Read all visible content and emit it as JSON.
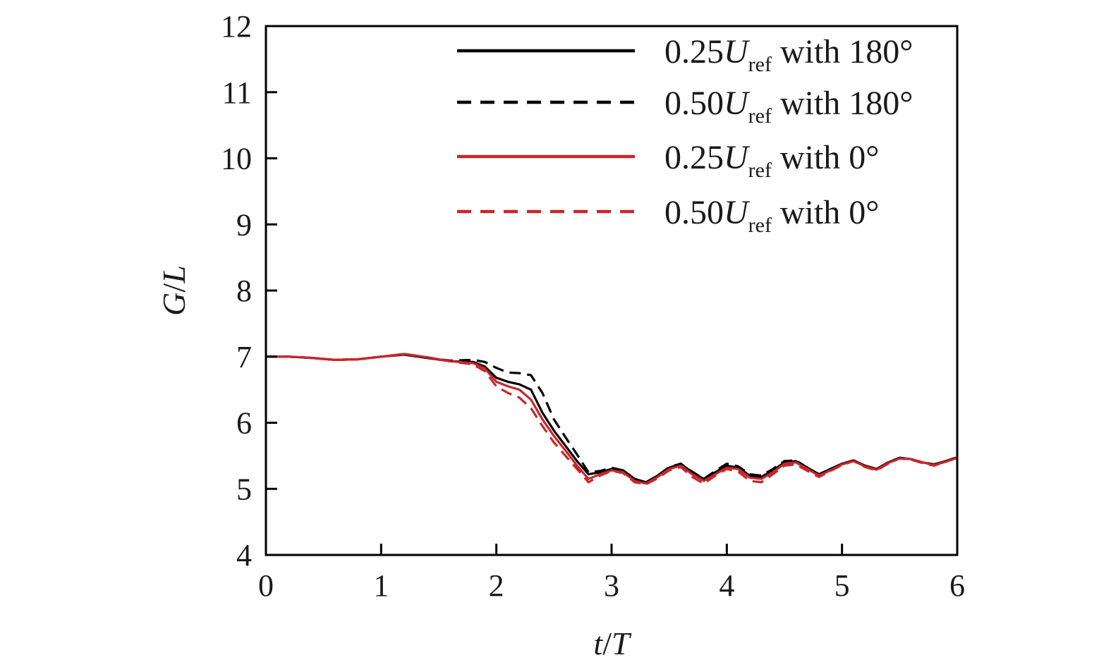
{
  "chart_data": {
    "type": "line",
    "xlabel": {
      "italic_a": "t",
      "sep": "/",
      "italic_b": "T"
    },
    "ylabel": {
      "italic_a": "G",
      "sep": "/",
      "italic_b": "L"
    },
    "xlim": [
      0,
      6
    ],
    "ylim": [
      4,
      12
    ],
    "xticks": [
      0,
      1,
      2,
      3,
      4,
      5,
      6
    ],
    "yticks": [
      4,
      5,
      6,
      7,
      8,
      9,
      10,
      11,
      12
    ],
    "grid": false,
    "legend_position": "top-right",
    "series": [
      {
        "name": "0.25Uref with 180°",
        "label": {
          "prefix": "0.25",
          "var": "U",
          "sub": "ref",
          "suffix": " with 180°"
        },
        "color": "#000000",
        "style": "solid",
        "x": [
          0,
          0.2,
          0.4,
          0.6,
          0.8,
          1.0,
          1.2,
          1.4,
          1.6,
          1.8,
          1.9,
          2.0,
          2.1,
          2.2,
          2.3,
          2.4,
          2.5,
          2.6,
          2.7,
          2.8,
          2.9,
          3.0,
          3.1,
          3.2,
          3.3,
          3.4,
          3.5,
          3.6,
          3.7,
          3.8,
          3.9,
          4.0,
          4.1,
          4.2,
          4.3,
          4.4,
          4.5,
          4.6,
          4.7,
          4.8,
          4.9,
          5.0,
          5.1,
          5.2,
          5.3,
          5.4,
          5.5,
          5.6,
          5.7,
          5.8,
          5.9,
          6.0
        ],
        "y": [
          7.0,
          7.0,
          6.98,
          6.95,
          6.96,
          7.0,
          7.03,
          6.98,
          6.93,
          6.92,
          6.85,
          6.68,
          6.62,
          6.58,
          6.5,
          6.15,
          5.88,
          5.65,
          5.42,
          5.22,
          5.25,
          5.3,
          5.28,
          5.15,
          5.1,
          5.2,
          5.32,
          5.38,
          5.25,
          5.15,
          5.25,
          5.35,
          5.32,
          5.2,
          5.18,
          5.28,
          5.4,
          5.42,
          5.32,
          5.22,
          5.3,
          5.38,
          5.43,
          5.35,
          5.3,
          5.4,
          5.47,
          5.45,
          5.4,
          5.37,
          5.42,
          5.47
        ]
      },
      {
        "name": "0.50Uref with 180°",
        "label": {
          "prefix": "0.50",
          "var": "U",
          "sub": "ref",
          "suffix": " with 180°"
        },
        "color": "#000000",
        "style": "dashed",
        "x": [
          0,
          0.2,
          0.4,
          0.6,
          0.8,
          1.0,
          1.2,
          1.4,
          1.6,
          1.8,
          1.9,
          2.0,
          2.1,
          2.2,
          2.3,
          2.4,
          2.5,
          2.6,
          2.7,
          2.8,
          2.9,
          3.0,
          3.1,
          3.2,
          3.3,
          3.4,
          3.5,
          3.6,
          3.7,
          3.8,
          3.9,
          4.0,
          4.1,
          4.2,
          4.3,
          4.4,
          4.5,
          4.6,
          4.7,
          4.8,
          4.9,
          5.0,
          5.1,
          5.2,
          5.3,
          5.4,
          5.5,
          5.6,
          5.7,
          5.8,
          5.9,
          6.0
        ],
        "y": [
          7.0,
          7.0,
          6.98,
          6.95,
          6.96,
          7.0,
          7.03,
          6.98,
          6.94,
          6.95,
          6.92,
          6.83,
          6.76,
          6.75,
          6.72,
          6.45,
          6.05,
          5.78,
          5.52,
          5.25,
          5.27,
          5.32,
          5.28,
          5.15,
          5.1,
          5.2,
          5.33,
          5.38,
          5.26,
          5.15,
          5.27,
          5.38,
          5.34,
          5.22,
          5.2,
          5.3,
          5.42,
          5.43,
          5.32,
          5.22,
          5.3,
          5.38,
          5.43,
          5.35,
          5.3,
          5.4,
          5.47,
          5.45,
          5.4,
          5.37,
          5.42,
          5.48
        ]
      },
      {
        "name": "0.25Uref with 0°",
        "label": {
          "prefix": "0.25",
          "var": "U",
          "sub": "ref",
          "suffix": " with 0°"
        },
        "color": "#c8262c",
        "style": "solid",
        "x": [
          0,
          0.2,
          0.4,
          0.6,
          0.8,
          1.0,
          1.2,
          1.4,
          1.6,
          1.8,
          1.9,
          2.0,
          2.1,
          2.2,
          2.3,
          2.4,
          2.5,
          2.6,
          2.7,
          2.8,
          2.9,
          3.0,
          3.1,
          3.2,
          3.3,
          3.4,
          3.5,
          3.6,
          3.7,
          3.8,
          3.9,
          4.0,
          4.1,
          4.2,
          4.3,
          4.4,
          4.5,
          4.6,
          4.7,
          4.8,
          4.9,
          5.0,
          5.1,
          5.2,
          5.3,
          5.4,
          5.5,
          5.6,
          5.7,
          5.8,
          5.9,
          6.0
        ],
        "y": [
          7.0,
          7.0,
          6.98,
          6.95,
          6.96,
          7.0,
          7.04,
          6.99,
          6.93,
          6.9,
          6.82,
          6.62,
          6.55,
          6.5,
          6.35,
          6.05,
          5.8,
          5.58,
          5.35,
          5.15,
          5.22,
          5.28,
          5.25,
          5.12,
          5.08,
          5.18,
          5.3,
          5.35,
          5.22,
          5.12,
          5.22,
          5.32,
          5.3,
          5.17,
          5.15,
          5.25,
          5.38,
          5.4,
          5.3,
          5.2,
          5.28,
          5.37,
          5.42,
          5.34,
          5.29,
          5.39,
          5.46,
          5.45,
          5.4,
          5.36,
          5.41,
          5.47
        ]
      },
      {
        "name": "0.50Uref with 0°",
        "label": {
          "prefix": "0.50",
          "var": "U",
          "sub": "ref",
          "suffix": " with 0°"
        },
        "color": "#c8262c",
        "style": "dashed",
        "x": [
          0,
          0.2,
          0.4,
          0.6,
          0.8,
          1.0,
          1.2,
          1.4,
          1.6,
          1.8,
          1.9,
          2.0,
          2.1,
          2.2,
          2.3,
          2.4,
          2.5,
          2.6,
          2.7,
          2.8,
          2.9,
          3.0,
          3.1,
          3.2,
          3.3,
          3.4,
          3.5,
          3.6,
          3.7,
          3.8,
          3.9,
          4.0,
          4.1,
          4.2,
          4.3,
          4.4,
          4.5,
          4.6,
          4.7,
          4.8,
          4.9,
          5.0,
          5.1,
          5.2,
          5.3,
          5.4,
          5.5,
          5.6,
          5.7,
          5.8,
          5.9,
          6.0
        ],
        "y": [
          7.0,
          7.0,
          6.98,
          6.95,
          6.96,
          7.0,
          7.04,
          6.99,
          6.93,
          6.88,
          6.78,
          6.55,
          6.45,
          6.38,
          6.22,
          5.95,
          5.7,
          5.5,
          5.3,
          5.1,
          5.2,
          5.27,
          5.24,
          5.1,
          5.07,
          5.16,
          5.28,
          5.33,
          5.18,
          5.08,
          5.2,
          5.3,
          5.26,
          5.12,
          5.1,
          5.22,
          5.35,
          5.37,
          5.27,
          5.18,
          5.27,
          5.36,
          5.42,
          5.33,
          5.28,
          5.38,
          5.46,
          5.44,
          5.39,
          5.35,
          5.41,
          5.47
        ]
      }
    ]
  }
}
